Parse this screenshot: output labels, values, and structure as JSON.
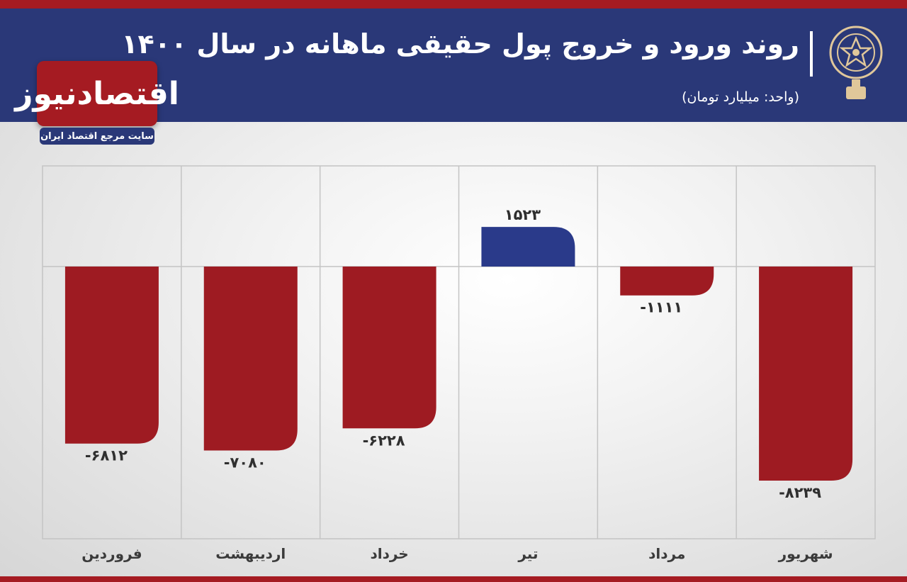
{
  "header": {
    "title": "روند ورود و خروج پول حقیقی ماهانه در سال ۱۴۰۰",
    "subtitle": "(واحد: میلیارد تومان)"
  },
  "brand": {
    "name": "اقتصادنیوز",
    "tagline": "سایت مرجع اقتصاد ایران"
  },
  "colors": {
    "header_bg": "#2a3878",
    "accent_red": "#a51b22",
    "negative_bar": "#9e1b22",
    "positive_bar": "#2a3a8a"
  },
  "chart_data": {
    "type": "bar",
    "categories": [
      "شهریور",
      "مرداد",
      "تیر",
      "خرداد",
      "اردیبهشت",
      "فروردین"
    ],
    "values": [
      -8239,
      -1111,
      1523,
      -6228,
      -7080,
      -6812
    ],
    "value_labels": [
      "-۸۲۳۹",
      "-۱۱۱۱",
      "۱۵۲۳",
      "-۶۲۲۸",
      "-۷۰۸۰",
      "-۶۸۱۲"
    ],
    "ylim": [
      -10000,
      3700
    ],
    "grid": true,
    "xlabel": "",
    "ylabel": ""
  }
}
